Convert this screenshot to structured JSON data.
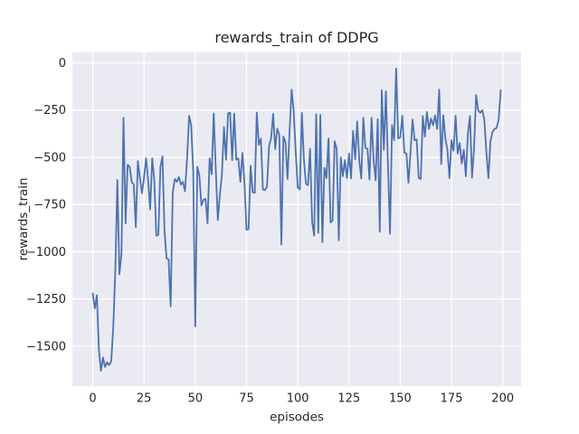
{
  "figure": {
    "bg_color": "#ffffff",
    "axes_bg_color": "#eaeaf2",
    "grid_color": "#ffffff",
    "text_color": "#262626",
    "line_color": "#4c72b0"
  },
  "chart_data": {
    "type": "line",
    "title": "rewards_train of DDPG",
    "xlabel": "episodes",
    "ylabel": "rewards_train",
    "legend": null,
    "grid": true,
    "x_ticks": [
      0,
      25,
      50,
      75,
      100,
      125,
      150,
      175,
      200
    ],
    "y_ticks": [
      0,
      -250,
      -500,
      -750,
      -1000,
      -1250,
      -1500
    ],
    "xlim": [
      -9.95,
      208.95
    ],
    "ylim": [
      -1712,
      57
    ],
    "x_start": 0,
    "x_step": 1,
    "series": [
      {
        "name": "rewards_train",
        "color": "#4c72b0",
        "values": [
          -1220,
          -1300,
          -1230,
          -1520,
          -1630,
          -1560,
          -1610,
          -1585,
          -1600,
          -1580,
          -1400,
          -1100,
          -620,
          -1120,
          -1010,
          -290,
          -850,
          -540,
          -550,
          -630,
          -645,
          -870,
          -520,
          -610,
          -690,
          -610,
          -505,
          -620,
          -775,
          -505,
          -620,
          -915,
          -910,
          -550,
          -495,
          -890,
          -1035,
          -1040,
          -1290,
          -690,
          -615,
          -630,
          -605,
          -645,
          -630,
          -680,
          -505,
          -280,
          -330,
          -570,
          -1395,
          -550,
          -595,
          -755,
          -725,
          -720,
          -850,
          -505,
          -590,
          -268,
          -563,
          -832,
          -700,
          -590,
          -340,
          -513,
          -268,
          -263,
          -515,
          -268,
          -513,
          -505,
          -630,
          -477,
          -635,
          -884,
          -879,
          -545,
          -685,
          -688,
          -263,
          -434,
          -401,
          -670,
          -674,
          -655,
          -440,
          -400,
          -270,
          -457,
          -349,
          -381,
          -962,
          -390,
          -420,
          -615,
          -365,
          -142,
          -255,
          -470,
          -660,
          -670,
          -265,
          -513,
          -640,
          -647,
          -455,
          -840,
          -915,
          -272,
          -900,
          -275,
          -950,
          -555,
          -610,
          -400,
          -845,
          -835,
          -415,
          -455,
          -940,
          -500,
          -600,
          -515,
          -610,
          -480,
          -612,
          -360,
          -510,
          -310,
          -515,
          -612,
          -290,
          -450,
          -455,
          -618,
          -290,
          -515,
          -622,
          -298,
          -895,
          -145,
          -460,
          -150,
          -540,
          -905,
          -330,
          -410,
          -30,
          -400,
          -395,
          -280,
          -475,
          -480,
          -635,
          -475,
          -300,
          -410,
          -405,
          -610,
          -615,
          -282,
          -390,
          -260,
          -350,
          -295,
          -330,
          -278,
          -350,
          -142,
          -536,
          -278,
          -400,
          -460,
          -610,
          -410,
          -465,
          -280,
          -480,
          -425,
          -533,
          -460,
          -600,
          -375,
          -282,
          -608,
          -450,
          -170,
          -250,
          -265,
          -250,
          -300,
          -470,
          -610,
          -415,
          -365,
          -350,
          -345,
          -300,
          -145
        ]
      }
    ]
  }
}
